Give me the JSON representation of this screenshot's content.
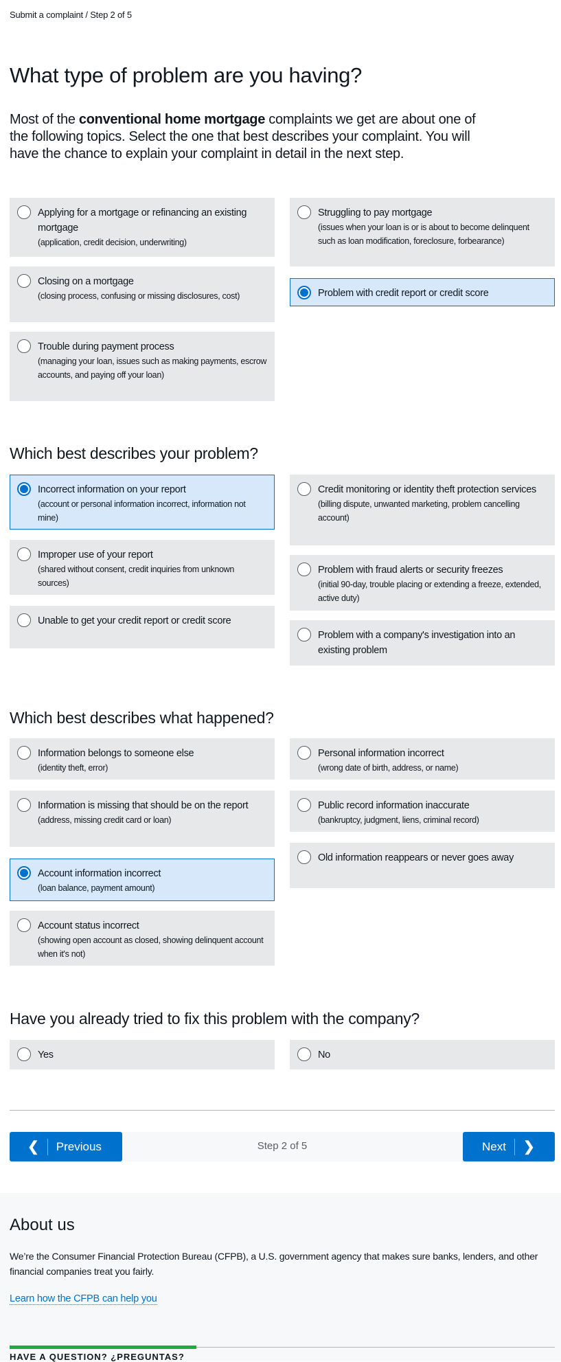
{
  "breadcrumb": {
    "link": "Submit a complaint",
    "step": " / Step 2 of 5"
  },
  "title": "What type of problem are you having?",
  "intro": {
    "before": "Most of the ",
    "bold": "conventional home mortgage",
    "after": " complaints we get are about one of the following topics. Select the one that best describes your complaint. You will have the chance to explain your complaint in detail in the next step."
  },
  "sections": [
    {
      "heading": "",
      "options": [
        {
          "label": "Applying for a mortgage or refinancing an existing mortgage",
          "detail": "(application, credit decision, underwriting)",
          "selected": false
        },
        {
          "label": "Struggling to pay mortgage",
          "detail": "(issues when your loan is or is about to become delinquent such as loan modification, foreclosure, forbearance)",
          "selected": false
        },
        {
          "label": "Closing on a mortgage",
          "detail": "(closing process, confusing or missing disclosures, cost)",
          "selected": false
        },
        {
          "label": "Problem with credit report or credit score",
          "detail": "",
          "selected": true
        },
        {
          "label": "Trouble during payment process",
          "detail": "(managing your loan, issues such as making payments, escrow accounts, and paying off your loan)",
          "selected": false
        }
      ]
    },
    {
      "heading": "Which best describes your problem?",
      "options": [
        {
          "label": "Incorrect information on your report",
          "detail": "(account or personal information incorrect, information not mine)",
          "selected": true
        },
        {
          "label": "Credit monitoring or identity theft protection services",
          "detail": "(billing dispute, unwanted marketing, problem cancelling account)",
          "selected": false
        },
        {
          "label": "Improper use of your report",
          "detail": "(shared without consent, credit inquiries from unknown sources)",
          "selected": false
        },
        {
          "label": "Problem with fraud alerts or security freezes",
          "detail": "(initial 90-day, trouble placing or extending a freeze, extended, active duty)",
          "selected": false
        },
        {
          "label": "Unable to get your credit report or credit score",
          "detail": "",
          "selected": false
        },
        {
          "label": "Problem with a company's investigation into an existing problem",
          "detail": "",
          "selected": false
        }
      ]
    },
    {
      "heading": "Which best describes what happened?",
      "options": [
        {
          "label": "Information belongs to someone else",
          "detail": "(identity theft, error)",
          "selected": false
        },
        {
          "label": "Personal information incorrect",
          "detail": "(wrong date of birth, address, or name)",
          "selected": false
        },
        {
          "label": "Information is missing that should be on the report",
          "detail": "(address, missing credit card or loan)",
          "selected": false
        },
        {
          "label": "Public record information inaccurate",
          "detail": "(bankruptcy, judgment, liens, criminal record)",
          "selected": false
        },
        {
          "label": "Account information incorrect",
          "detail": "(loan balance, payment amount)",
          "selected": true
        },
        {
          "label": "Old information reappears or never goes away",
          "detail": "",
          "selected": false
        },
        {
          "label": "Account status incorrect",
          "detail": "(showing open account as closed, showing delinquent account when it's not)",
          "selected": false
        }
      ]
    },
    {
      "heading": "Have you already tried to fix this problem with the company?",
      "options": [
        {
          "label": "Yes",
          "detail": "",
          "selected": false
        },
        {
          "label": "No",
          "detail": "",
          "selected": false
        }
      ]
    }
  ],
  "nav": {
    "previous": "Previous",
    "step": "Step 2 of 5",
    "next": "Next"
  },
  "footer": {
    "about_title": "About us",
    "about_text": "We’re the Consumer Financial Protection Bureau (CFPB), a U.S. government agency that makes sure banks, lenders, and other financial companies treat you fairly.",
    "link": "Learn how the CFPB can help you",
    "question": "HAVE A QUESTION? ¿PREGUNTAS?"
  },
  "colors": {
    "accent": "#0072ce",
    "selected_bg": "#d6e8fa",
    "card_bg": "#e7e8e9",
    "green": "#20aa3f"
  }
}
